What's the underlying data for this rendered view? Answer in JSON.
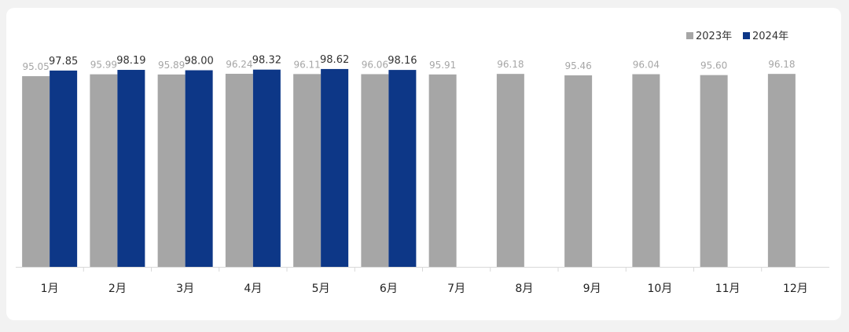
{
  "chart_data": {
    "type": "bar",
    "categories": [
      "1月",
      "2月",
      "3月",
      "4月",
      "5月",
      "6月",
      "7月",
      "8月",
      "9月",
      "10月",
      "11月",
      "12月"
    ],
    "series": [
      {
        "name": "2023年",
        "color": "#a6a6a6",
        "values": [
          95.05,
          95.99,
          95.89,
          96.24,
          96.11,
          96.06,
          95.91,
          96.18,
          95.46,
          96.04,
          95.6,
          96.18
        ],
        "labels": [
          "95.05",
          "95.99",
          "95.89",
          "96.24",
          "96.11",
          "96.06",
          "95.91",
          "96.18",
          "95.46",
          "96.04",
          "95.60",
          "96.18"
        ]
      },
      {
        "name": "2024年",
        "color": "#0d3787",
        "values": [
          97.85,
          98.19,
          98.0,
          98.32,
          98.62,
          98.16,
          null,
          null,
          null,
          null,
          null,
          null
        ],
        "labels": [
          "97.85",
          "98.19",
          "98.00",
          "98.32",
          "98.62",
          "98.16",
          null,
          null,
          null,
          null,
          null,
          null
        ]
      }
    ],
    "title": "",
    "xlabel": "",
    "ylabel": "",
    "ylim": [
      0,
      108
    ],
    "grid": false,
    "legend_position": "top-right"
  }
}
